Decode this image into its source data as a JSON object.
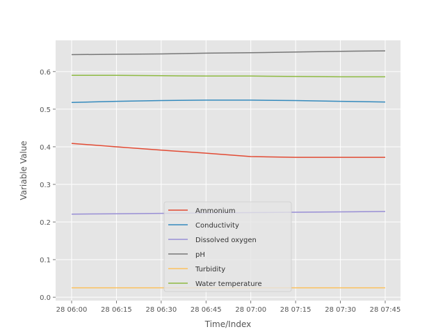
{
  "chart_data": {
    "type": "line",
    "title": "",
    "xlabel": "Time/Index",
    "ylabel": "Variable Value",
    "x": [
      "28 06:00",
      "28 06:15",
      "28 06:30",
      "28 06:45",
      "28 07:00",
      "28 07:15",
      "28 07:30",
      "28 07:45"
    ],
    "ylim": [
      -0.009,
      0.683
    ],
    "yticks": [
      "0.0",
      "0.1",
      "0.2",
      "0.3",
      "0.4",
      "0.5",
      "0.6"
    ],
    "grid": true,
    "legend_position": "lower center",
    "series": [
      {
        "name": "Ammonium",
        "color": "#E24A33",
        "values": [
          0.409,
          0.4,
          0.391,
          0.383,
          0.374,
          0.372,
          0.372,
          0.372
        ]
      },
      {
        "name": "Conductivity",
        "color": "#348ABD",
        "values": [
          0.518,
          0.521,
          0.523,
          0.524,
          0.524,
          0.523,
          0.521,
          0.519
        ]
      },
      {
        "name": "Dissolved oxygen",
        "color": "#988ED5",
        "values": [
          0.221,
          0.222,
          0.223,
          0.224,
          0.225,
          0.226,
          0.227,
          0.228
        ]
      },
      {
        "name": "pH",
        "color": "#777777",
        "values": [
          0.645,
          0.646,
          0.647,
          0.649,
          0.65,
          0.652,
          0.654,
          0.655
        ]
      },
      {
        "name": "Turbidity",
        "color": "#FBC15E",
        "values": [
          0.025,
          0.025,
          0.025,
          0.025,
          0.025,
          0.025,
          0.025,
          0.025
        ]
      },
      {
        "name": "Water temperature",
        "color": "#8EBA42",
        "values": [
          0.59,
          0.59,
          0.589,
          0.588,
          0.588,
          0.587,
          0.586,
          0.586
        ]
      }
    ]
  }
}
